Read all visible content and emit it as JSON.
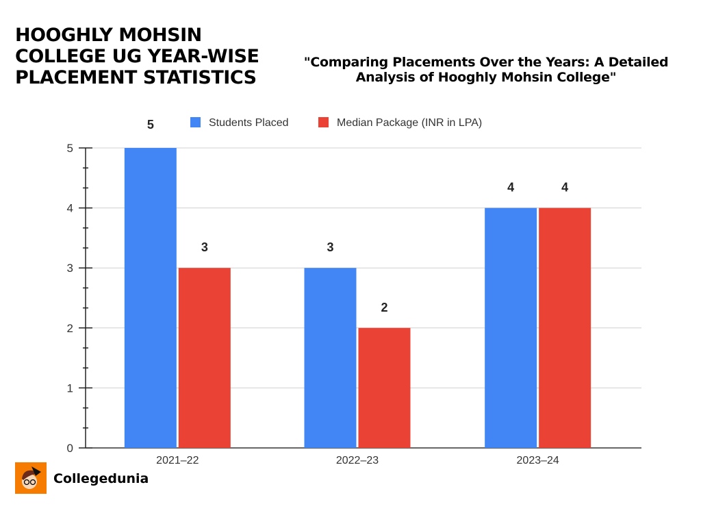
{
  "header": {
    "title": "HOOGHLY MOHSIN COLLEGE UG YEAR-WISE PLACEMENT STATISTICS",
    "subtitle": "\"Comparing Placements Over the Years: A Detailed Analysis of  Hooghly Mohsin College\""
  },
  "brand": {
    "name": "Collegedunia"
  },
  "chart_data": {
    "type": "bar",
    "categories": [
      "2021–22",
      "2022–23",
      "2023–24"
    ],
    "series": [
      {
        "name": "Students Placed",
        "values": [
          5,
          3,
          4
        ],
        "color": "#4285f4"
      },
      {
        "name": "Median Package (INR in LPA)",
        "values": [
          3,
          2,
          4
        ],
        "color": "#ea4335"
      }
    ],
    "ylim": [
      0,
      5
    ],
    "yticks": [
      0,
      1,
      2,
      3,
      4,
      5
    ],
    "grid": true,
    "legend": "top",
    "xlabel": "",
    "ylabel": ""
  }
}
